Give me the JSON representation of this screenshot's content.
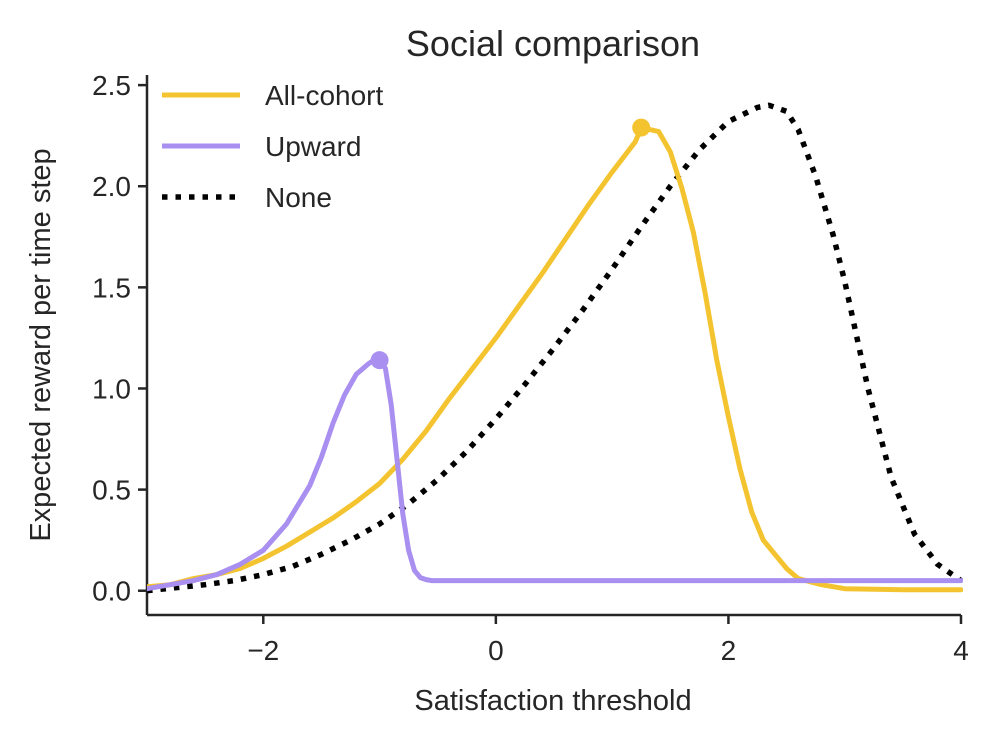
{
  "chart_data": {
    "type": "line",
    "title": "Social comparison",
    "xlabel": "Satisfaction threshold",
    "ylabel": "Expected reward per time step",
    "xlim": [
      -3,
      4
    ],
    "ylim": [
      -0.12,
      2.55
    ],
    "x_ticks": [
      -2,
      0,
      2,
      4
    ],
    "x_tick_labels": [
      "−2",
      "0",
      "2",
      "4"
    ],
    "y_ticks": [
      0.0,
      0.5,
      1.0,
      1.5,
      2.0,
      2.5
    ],
    "y_tick_labels": [
      "0.0",
      "0.5",
      "1.0",
      "1.5",
      "2.0",
      "2.5"
    ],
    "grid": false,
    "legend_position": "top-left",
    "series": [
      {
        "name": "All-cohort",
        "color": "#f4c430",
        "style": "solid",
        "peak": {
          "x": 1.25,
          "y": 2.29
        },
        "x": [
          -3.0,
          -2.8,
          -2.6,
          -2.4,
          -2.2,
          -2.0,
          -1.8,
          -1.6,
          -1.4,
          -1.2,
          -1.0,
          -0.8,
          -0.6,
          -0.4,
          -0.2,
          0.0,
          0.2,
          0.4,
          0.6,
          0.8,
          1.0,
          1.2,
          1.25,
          1.4,
          1.5,
          1.6,
          1.7,
          1.8,
          1.9,
          2.0,
          2.1,
          2.2,
          2.3,
          2.4,
          2.5,
          2.6,
          2.8,
          3.0,
          3.5,
          4.0
        ],
        "y": [
          0.02,
          0.03,
          0.06,
          0.08,
          0.11,
          0.16,
          0.22,
          0.29,
          0.36,
          0.44,
          0.53,
          0.65,
          0.79,
          0.95,
          1.1,
          1.25,
          1.41,
          1.57,
          1.74,
          1.91,
          2.07,
          2.22,
          2.29,
          2.27,
          2.17,
          1.99,
          1.77,
          1.47,
          1.14,
          0.86,
          0.6,
          0.39,
          0.25,
          0.18,
          0.11,
          0.06,
          0.03,
          0.01,
          0.005,
          0.005
        ]
      },
      {
        "name": "Upward",
        "color": "#a98ff0",
        "style": "solid",
        "peak": {
          "x": -1.0,
          "y": 1.14
        },
        "x": [
          -3.0,
          -2.8,
          -2.6,
          -2.4,
          -2.2,
          -2.0,
          -1.8,
          -1.6,
          -1.5,
          -1.4,
          -1.3,
          -1.2,
          -1.1,
          -1.05,
          -1.0,
          -0.95,
          -0.9,
          -0.85,
          -0.8,
          -0.75,
          -0.7,
          -0.65,
          -0.6,
          -0.55,
          -0.5,
          -0.4,
          0.0,
          1.0,
          2.0,
          3.0,
          4.0
        ],
        "y": [
          0.01,
          0.03,
          0.05,
          0.08,
          0.13,
          0.2,
          0.33,
          0.52,
          0.66,
          0.83,
          0.97,
          1.07,
          1.12,
          1.14,
          1.14,
          1.1,
          0.92,
          0.65,
          0.38,
          0.2,
          0.1,
          0.065,
          0.055,
          0.05,
          0.05,
          0.05,
          0.05,
          0.05,
          0.05,
          0.05,
          0.05
        ]
      },
      {
        "name": "None",
        "color": "#000000",
        "style": "dotted",
        "x": [
          -3.0,
          -2.75,
          -2.5,
          -2.25,
          -2.0,
          -1.75,
          -1.5,
          -1.25,
          -1.0,
          -0.75,
          -0.5,
          -0.25,
          0.0,
          0.25,
          0.5,
          0.75,
          1.0,
          1.25,
          1.5,
          1.75,
          2.0,
          2.25,
          2.35,
          2.5,
          2.6,
          2.75,
          2.9,
          3.0,
          3.2,
          3.4,
          3.6,
          3.8,
          4.0
        ],
        "y": [
          0.0,
          0.015,
          0.03,
          0.05,
          0.08,
          0.12,
          0.18,
          0.25,
          0.33,
          0.43,
          0.55,
          0.69,
          0.85,
          1.02,
          1.2,
          1.39,
          1.59,
          1.8,
          2.0,
          2.18,
          2.32,
          2.39,
          2.4,
          2.37,
          2.28,
          2.05,
          1.76,
          1.53,
          1.0,
          0.56,
          0.28,
          0.13,
          0.05
        ]
      }
    ]
  }
}
